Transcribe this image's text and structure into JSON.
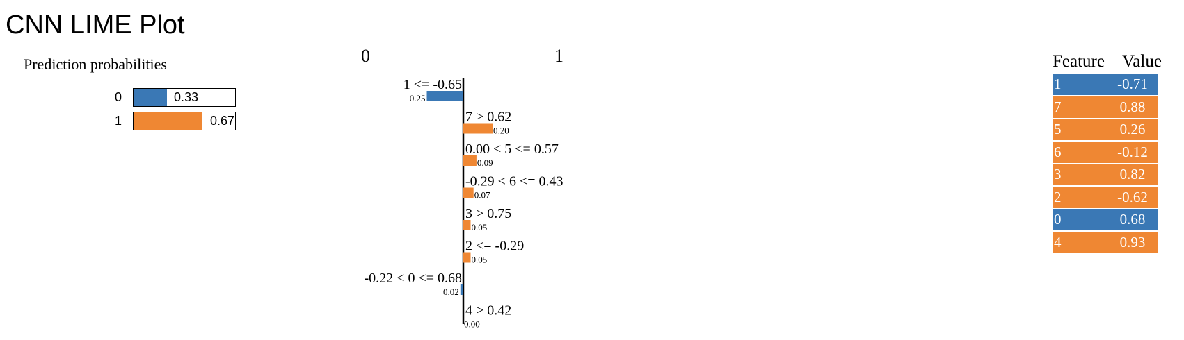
{
  "title": "CNN LIME Plot",
  "colors": {
    "class0": "#3a78b5",
    "class1": "#ef8733"
  },
  "prediction_probabilities": {
    "title": "Prediction probabilities",
    "rows": [
      {
        "label": "0",
        "value": "0.33",
        "prob": 0.33
      },
      {
        "label": "1",
        "value": "0.67",
        "prob": 0.67
      }
    ]
  },
  "chart_data": {
    "type": "bar",
    "orientation": "horizontal",
    "class_labels": [
      "0",
      "1"
    ],
    "bars": [
      {
        "condition": "1 <= -0.65",
        "value": 0.25,
        "label": "0.25",
        "class": "0"
      },
      {
        "condition": "7 > 0.62",
        "value": 0.2,
        "label": "0.20",
        "class": "1"
      },
      {
        "condition": "0.00 < 5 <= 0.57",
        "value": 0.09,
        "label": "0.09",
        "class": "1"
      },
      {
        "condition": "-0.29 < 6 <= 0.43",
        "value": 0.07,
        "label": "0.07",
        "class": "1"
      },
      {
        "condition": "3 > 0.75",
        "value": 0.05,
        "label": "0.05",
        "class": "1"
      },
      {
        "condition": "2 <= -0.29",
        "value": 0.05,
        "label": "0.05",
        "class": "1"
      },
      {
        "condition": "-0.22 < 0 <= 0.68",
        "value": 0.02,
        "label": "0.02",
        "class": "0"
      },
      {
        "condition": "4 > 0.42",
        "value": 0.0,
        "label": "0.00",
        "class": "1"
      }
    ]
  },
  "feature_table": {
    "headers": [
      "Feature",
      "Value"
    ],
    "rows": [
      {
        "feature": "1",
        "value": "-0.71",
        "class": "0"
      },
      {
        "feature": "7",
        "value": "0.88",
        "class": "1"
      },
      {
        "feature": "5",
        "value": "0.26",
        "class": "1"
      },
      {
        "feature": "6",
        "value": "-0.12",
        "class": "1"
      },
      {
        "feature": "3",
        "value": "0.82",
        "class": "1"
      },
      {
        "feature": "2",
        "value": "-0.62",
        "class": "1"
      },
      {
        "feature": "0",
        "value": "0.68",
        "class": "0"
      },
      {
        "feature": "4",
        "value": "0.93",
        "class": "1"
      }
    ]
  }
}
